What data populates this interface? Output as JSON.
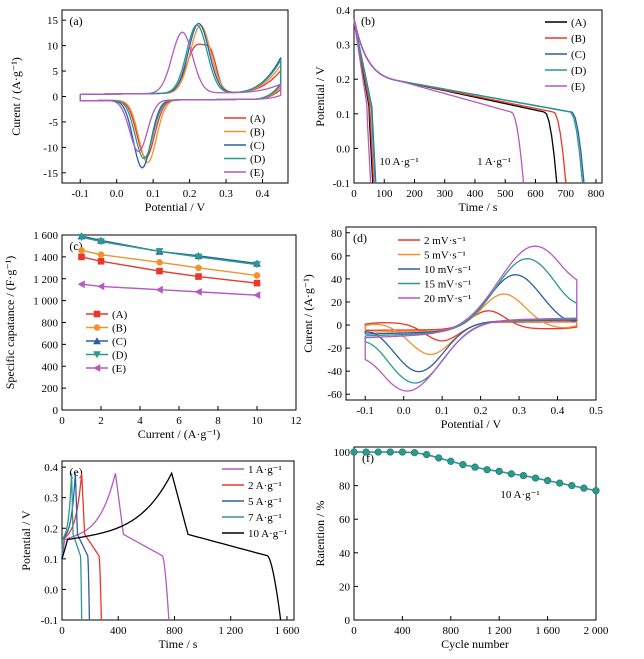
{
  "chart_data": [
    {
      "id": "a",
      "panel_label": "(a)",
      "type": "line",
      "xlabel": "Potential / V",
      "ylabel": "Curent / (A·g⁻¹)",
      "xlim": [
        -0.15,
        0.47
      ],
      "ylim": [
        -17,
        17
      ],
      "xticks": [
        -0.1,
        0.0,
        0.1,
        0.2,
        0.3,
        0.4
      ],
      "xtick_labels": [
        "-0.1",
        "0.0",
        "0.1",
        "0.2",
        "0.3",
        "0.4"
      ],
      "yticks": [
        -15,
        -10,
        -5,
        0,
        5,
        10,
        15
      ],
      "yticks_labels": [
        "-15",
        "-10",
        "-5",
        "0",
        "5",
        "10",
        "15"
      ],
      "legend_position": "bottom-right",
      "series": [
        {
          "name": "(A)",
          "color": "#e8382b",
          "peak_anodic": [
            0.22,
            10.3
          ],
          "peak_anodic2": [
            0.26,
            9.0
          ],
          "peak_cathodic": [
            0.08,
            -11.8
          ],
          "end_current": 4.2
        },
        {
          "name": "(B)",
          "color": "#f0922e",
          "peak_anodic": [
            0.23,
            14.3
          ],
          "peak_cathodic": [
            0.085,
            -12.8
          ],
          "end_current": 5.3
        },
        {
          "name": "(C)",
          "color": "#2c5ea8",
          "peak_anodic": [
            0.225,
            14.7
          ],
          "peak_cathodic": [
            0.07,
            -13.8
          ],
          "end_current": 6.8
        },
        {
          "name": "(D)",
          "color": "#2a9a8f",
          "peak_anodic": [
            0.22,
            14.4
          ],
          "peak_cathodic": [
            0.075,
            -12.0
          ],
          "end_current": 6.3
        },
        {
          "name": "(E)",
          "color": "#b35bc0",
          "peak_anodic": [
            0.18,
            13.0
          ],
          "peak_cathodic": [
            0.06,
            -10.6
          ],
          "end_current": 1.6
        }
      ]
    },
    {
      "id": "b",
      "panel_label": "(b)",
      "type": "line",
      "xlabel": "Time / s",
      "ylabel": "Potential / V",
      "xlim": [
        0,
        820
      ],
      "ylim": [
        -0.1,
        0.4
      ],
      "xticks": [
        0,
        100,
        200,
        300,
        400,
        500,
        600,
        700,
        800
      ],
      "xtick_labels": [
        "0",
        "100",
        "200",
        "300",
        "400",
        "500",
        "600",
        "700",
        "800"
      ],
      "yticks": [
        -0.1,
        0.0,
        0.1,
        0.2,
        0.3,
        0.4
      ],
      "ytick_labels": [
        "-0.1",
        "0.0",
        "0.1",
        "0.2",
        "0.3",
        "0.4"
      ],
      "annotations": [
        "10 A·g⁻¹",
        "1 A·g⁻¹"
      ],
      "legend_position": "top-right",
      "series": [
        {
          "name": "(A)",
          "color": "#000000",
          "discharge_end_1A": 670,
          "discharge_end_10A": 62
        },
        {
          "name": "(B)",
          "color": "#e8382b",
          "discharge_end_1A": 700,
          "discharge_end_10A": 65
        },
        {
          "name": "(C)",
          "color": "#2c5ea8",
          "discharge_end_1A": 760,
          "discharge_end_10A": 72
        },
        {
          "name": "(D)",
          "color": "#2a9a8f",
          "discharge_end_1A": 755,
          "discharge_end_10A": 70
        },
        {
          "name": "(E)",
          "color": "#b35bc0",
          "discharge_end_1A": 560,
          "discharge_end_10A": 55
        }
      ]
    },
    {
      "id": "c",
      "panel_label": "(c)",
      "type": "line",
      "xlabel": "Current / (A·g⁻¹)",
      "ylabel": "Specific capatance / (F·g⁻¹)",
      "xlim": [
        0,
        12
      ],
      "ylim": [
        0,
        1600
      ],
      "xticks": [
        0,
        2,
        4,
        6,
        8,
        10,
        12
      ],
      "xtick_labels": [
        "0",
        "2",
        "4",
        "6",
        "8",
        "10",
        "12"
      ],
      "yticks": [
        0,
        200,
        400,
        600,
        800,
        1000,
        1200,
        1400,
        1600
      ],
      "ytick_labels": [
        "0",
        "200",
        "400",
        "600",
        "800",
        "1 000",
        "1 200",
        "1 400",
        "1 600"
      ],
      "legend_position": "center-left",
      "x": [
        1,
        2,
        5,
        7,
        10
      ],
      "series": [
        {
          "name": "(A)",
          "color": "#e8382b",
          "marker": "square",
          "values": [
            1400,
            1360,
            1270,
            1220,
            1160
          ]
        },
        {
          "name": "(B)",
          "color": "#f0922e",
          "marker": "circle",
          "values": [
            1460,
            1420,
            1350,
            1300,
            1230
          ]
        },
        {
          "name": "(C)",
          "color": "#2c5ea8",
          "marker": "triangle-up",
          "values": [
            1590,
            1550,
            1450,
            1410,
            1340
          ]
        },
        {
          "name": "(D)",
          "color": "#2a9a8f",
          "marker": "triangle-down",
          "values": [
            1580,
            1540,
            1450,
            1400,
            1330
          ]
        },
        {
          "name": "(E)",
          "color": "#b35bc0",
          "marker": "triangle-left",
          "values": [
            1150,
            1130,
            1100,
            1080,
            1050
          ]
        }
      ]
    },
    {
      "id": "d",
      "panel_label": "(d)",
      "type": "line",
      "xlabel": "Potential / V",
      "ylabel": "Curent / (A·g⁻¹)",
      "xlim": [
        -0.15,
        0.5
      ],
      "ylim": [
        -65,
        85
      ],
      "xticks": [
        -0.1,
        0.0,
        0.1,
        0.2,
        0.3,
        0.4,
        0.5
      ],
      "xtick_labels": [
        "-0.1",
        "0.0",
        "0.1",
        "0.2",
        "0.3",
        "0.4",
        "0.5"
      ],
      "yticks": [
        -60,
        -40,
        -20,
        0,
        20,
        40,
        60,
        80
      ],
      "ytick_labels": [
        "-60",
        "-40",
        "-20",
        "0",
        "20",
        "40",
        "60",
        "80"
      ],
      "legend_position": "top-left",
      "series": [
        {
          "name": "2 mV·s⁻¹",
          "color": "#e8382b",
          "peak_anodic": [
            0.22,
            14
          ],
          "peak_cathodic": [
            0.1,
            -14
          ]
        },
        {
          "name": "5 mV·s⁻¹",
          "color": "#f0922e",
          "peak_anodic": [
            0.26,
            29
          ],
          "peak_cathodic": [
            0.07,
            -26
          ]
        },
        {
          "name": "10 mV·s⁻¹",
          "color": "#2c5ea8",
          "peak_anodic": [
            0.29,
            46
          ],
          "peak_cathodic": [
            0.04,
            -41
          ]
        },
        {
          "name": "15 mV·s⁻¹",
          "color": "#2a9a8f",
          "peak_anodic": [
            0.32,
            60
          ],
          "peak_cathodic": [
            0.03,
            -51
          ]
        },
        {
          "name": "20 mV·s⁻¹",
          "color": "#b35bc0",
          "peak_anodic": [
            0.34,
            71
          ],
          "peak_cathodic": [
            0.01,
            -58
          ]
        }
      ]
    },
    {
      "id": "e",
      "panel_label": "(e)",
      "type": "line",
      "xlabel": "Time / s",
      "ylabel": "Potential / V",
      "xlim": [
        0,
        1650
      ],
      "ylim": [
        -0.1,
        0.42
      ],
      "xticks": [
        0,
        400,
        800,
        1200,
        1600
      ],
      "xtick_labels": [
        "0",
        "400",
        "800",
        "1 200",
        "1 600"
      ],
      "yticks": [
        -0.1,
        0.0,
        0.1,
        0.2,
        0.3,
        0.4
      ],
      "ytick_labels": [
        "-0.1",
        "0.0",
        "0.1",
        "0.2",
        "0.3",
        "0.4"
      ],
      "legend_position": "top-right",
      "series": [
        {
          "name": "1 A·g⁻¹",
          "color": "#b35bc0",
          "charge_start": 0,
          "peak_time": 380,
          "end_time": 760
        },
        {
          "name": "2 A·g⁻¹",
          "color": "#e8382b",
          "charge_start": 0,
          "peak_time": 140,
          "end_time": 280
        },
        {
          "name": "5 A·g⁻¹",
          "color": "#2c5ea8",
          "charge_start": 0,
          "peak_time": 95,
          "end_time": 195
        },
        {
          "name": "7 A·g⁻¹",
          "color": "#2a9a8f",
          "charge_start": 0,
          "peak_time": 68,
          "end_time": 140
        },
        {
          "name": "10 A·g⁻¹",
          "color": "#000000",
          "charge_start": 0,
          "peak_time": 780,
          "end_time": 1555
        }
      ]
    },
    {
      "id": "f",
      "panel_label": "(f)",
      "type": "line",
      "xlabel": "Cycle number",
      "ylabel": "Ratention / %",
      "xlim": [
        0,
        2000
      ],
      "ylim": [
        0,
        103
      ],
      "xticks": [
        0,
        400,
        800,
        1200,
        1600,
        2000
      ],
      "xtick_labels": [
        "0",
        "400",
        "800",
        "1 200",
        "1 600",
        "2 000"
      ],
      "yticks": [
        0,
        20,
        40,
        60,
        80,
        100
      ],
      "ytick_labels": [
        "0",
        "20",
        "40",
        "60",
        "80",
        "100"
      ],
      "annotation": "10 A·g⁻¹",
      "series": [
        {
          "color": "#2a9a8f",
          "x": [
            0,
            100,
            200,
            300,
            400,
            500,
            600,
            700,
            800,
            900,
            1000,
            1100,
            1200,
            1300,
            1400,
            1500,
            1600,
            1700,
            1800,
            1900,
            2000
          ],
          "values": [
            100,
            100,
            100,
            100,
            100,
            99.6,
            98.5,
            96.5,
            94.5,
            92.5,
            91,
            89.5,
            88.5,
            87,
            86,
            84.5,
            83,
            81.5,
            80,
            78.5,
            77
          ]
        }
      ]
    }
  ]
}
